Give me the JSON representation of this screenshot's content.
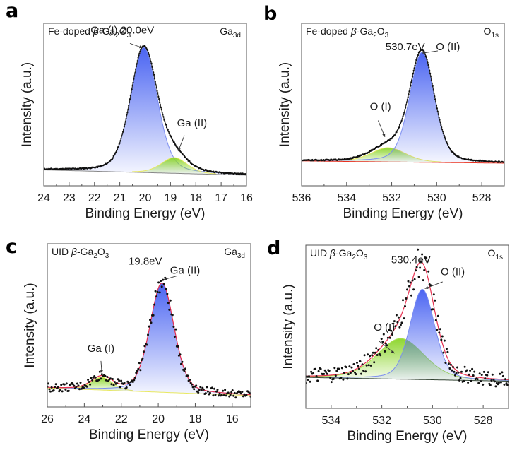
{
  "figure": {
    "description": "XPS spectra of Fe-doped and UID beta-Ga2O3 (Ga 3d and O 1s core levels)"
  },
  "chart_data": [
    {
      "panel": "a",
      "type": "line",
      "title": "",
      "sample_label": {
        "prefix": "Fe-doped ",
        "beta": "β",
        "main": "-Ga",
        "sub1": "2",
        "mid": "O",
        "sub2": "3"
      },
      "core_level": {
        "main": "Ga",
        "sub": "3d"
      },
      "xlabel": "Binding Energy (eV)",
      "ylabel": "Intensity (a.u.)",
      "xlim": [
        24,
        16
      ],
      "x_reversed": true,
      "xticks": [
        24,
        23,
        22,
        21,
        20,
        19,
        18,
        17,
        16
      ],
      "ylim": [
        0,
        1.0
      ],
      "yticks_shown": false,
      "background": {
        "left": 0.04,
        "right": 0.005
      },
      "noise": 0.004,
      "components": [
        {
          "name": "Ga (I)",
          "center": 20.05,
          "fwhm": 1.25,
          "height": 0.835,
          "color": "#4a64f2",
          "line": "#7a8cf0"
        },
        {
          "name": "Ga (II)",
          "center": 18.85,
          "fwhm": 1.2,
          "height": 0.105,
          "color": "#8fd630",
          "line": "#e8e860"
        }
      ],
      "envelope_color": "#333333",
      "data_point_color": "#111111",
      "annotations": [
        {
          "text": "Ga (I) 20.0eV",
          "text_x": 20.9,
          "text_y": 0.95,
          "arrow_from": [
            20.6,
            0.885
          ],
          "arrow_to": [
            20.1,
            0.855
          ]
        },
        {
          "text": "Ga (II)",
          "text_x": 18.15,
          "text_y": 0.33,
          "arrow_from": [
            18.45,
            0.27
          ],
          "arrow_to": [
            18.7,
            0.165
          ]
        }
      ]
    },
    {
      "panel": "b",
      "type": "line",
      "sample_label": {
        "prefix": "Fe-doped ",
        "beta": "β",
        "main": "-Ga",
        "sub1": "2",
        "mid": "O",
        "sub2": "3"
      },
      "core_level": {
        "main": "O",
        "sub": "1s"
      },
      "xlabel": "Binding Energy (eV)",
      "ylabel": "Intensity (a.u.)",
      "xlim": [
        536,
        527
      ],
      "x_reversed": true,
      "xticks": [
        536,
        534,
        532,
        530,
        528
      ],
      "minor_step": 1,
      "ylim": [
        0,
        1.0
      ],
      "yticks_shown": false,
      "background": {
        "left": 0.1,
        "right": 0.085
      },
      "noise": 0.004,
      "components": [
        {
          "name": "O (I)",
          "center": 532.15,
          "fwhm": 1.8,
          "height": 0.095,
          "color": "#8fd630",
          "line": "#e8e860"
        },
        {
          "name": "O (II)",
          "center": 530.65,
          "fwhm": 1.3,
          "height": 0.735,
          "color": "#4a64f2",
          "line": "#7a8cf0"
        }
      ],
      "envelope_color": "#333333",
      "baseline_color": "#e83020",
      "data_point_color": "#111111",
      "annotations": [
        {
          "text": "530.7eV",
          "text_x": 531.4,
          "text_y": 0.84,
          "arrow_from": [
            529.95,
            0.835
          ],
          "arrow_to": [
            530.65,
            0.82
          ]
        },
        {
          "text": "O (II)",
          "text_x": 529.5,
          "text_y": 0.84,
          "arrow_from": null,
          "arrow_to": null
        },
        {
          "text": "O (I)",
          "text_x": 532.5,
          "text_y": 0.44,
          "arrow_from": [
            532.6,
            0.37
          ],
          "arrow_to": [
            532.3,
            0.26
          ]
        }
      ]
    },
    {
      "panel": "c",
      "type": "line",
      "sample_label": {
        "prefix": "UID ",
        "beta": "β",
        "main": "-Ga",
        "sub1": "2",
        "mid": "O",
        "sub2": "3"
      },
      "core_level": {
        "main": "Ga",
        "sub": "3d"
      },
      "xlabel": "Binding Energy (eV)",
      "ylabel": "Intensity (a.u.)",
      "xlim": [
        26,
        15
      ],
      "x_reversed": true,
      "xticks": [
        26,
        24,
        22,
        20,
        18,
        16
      ],
      "minor_step": 1,
      "ylim": [
        0,
        1.0
      ],
      "yticks_shown": false,
      "background": {
        "left": 0.06,
        "right": 0.01
      },
      "noise": 0.025,
      "components": [
        {
          "name": "Ga (I)",
          "center": 23.05,
          "fwhm": 1.35,
          "height": 0.085,
          "color": "#8fd630",
          "line": "#e8e860"
        },
        {
          "name": "Ga (II)",
          "center": 19.8,
          "fwhm": 1.55,
          "height": 0.725,
          "color": "#4a64f2",
          "line": "#7a8cf0"
        }
      ],
      "envelope_color": "#e83050",
      "baseline_color": "#e8e860",
      "data_point_color": "#111111",
      "annotations": [
        {
          "text": "19.8eV",
          "text_x": 20.7,
          "text_y": 0.88,
          "arrow_from": null,
          "arrow_to": null
        },
        {
          "text": "Ga (II)",
          "text_x": 18.55,
          "text_y": 0.82,
          "arrow_from": [
            19.0,
            0.805
          ],
          "arrow_to": [
            19.7,
            0.78
          ]
        },
        {
          "text": "Ga (I)",
          "text_x": 23.1,
          "text_y": 0.3,
          "arrow_from": [
            23.1,
            0.24
          ],
          "arrow_to": [
            23.05,
            0.16
          ]
        }
      ]
    },
    {
      "panel": "d",
      "type": "line",
      "sample_label": {
        "prefix": "UID ",
        "beta": "β",
        "main": "-Ga",
        "sub1": "2",
        "mid": "O",
        "sub2": "3"
      },
      "core_level": {
        "main": "O",
        "sub": "1s"
      },
      "xlabel": "Binding Energy (eV)",
      "ylabel": "Intensity (a.u.)",
      "xlim": [
        535,
        527
      ],
      "x_reversed": true,
      "xticks": [
        534,
        532,
        530,
        528
      ],
      "minor_step": 1,
      "ylim": [
        0,
        1.0
      ],
      "yticks_shown": false,
      "background": {
        "left": 0.14,
        "right": 0.115
      },
      "noise": 0.04,
      "components": [
        {
          "name": "O (I)",
          "center": 531.25,
          "fwhm": 2.2,
          "height": 0.27,
          "color": "#8fd630",
          "line": "#a8e050"
        },
        {
          "name": "O (II)",
          "center": 530.4,
          "fwhm": 1.15,
          "height": 0.6,
          "color": "#4a64f2",
          "line": "#7a8cf0"
        }
      ],
      "envelope_color": "#e83050",
      "baseline_color": "#334433",
      "data_point_color": "#111111",
      "annotations": [
        {
          "text": "530.4eV",
          "text_x": 530.85,
          "text_y": 0.9,
          "arrow_from": null,
          "arrow_to": null
        },
        {
          "text": "O (II)",
          "text_x": 529.2,
          "text_y": 0.82,
          "arrow_from": [
            529.6,
            0.775
          ],
          "arrow_to": [
            530.3,
            0.73
          ]
        },
        {
          "text": "O (I)",
          "text_x": 531.9,
          "text_y": 0.45,
          "arrow_from": [
            532.1,
            0.38
          ],
          "arrow_to": [
            531.5,
            0.3
          ]
        }
      ]
    }
  ]
}
